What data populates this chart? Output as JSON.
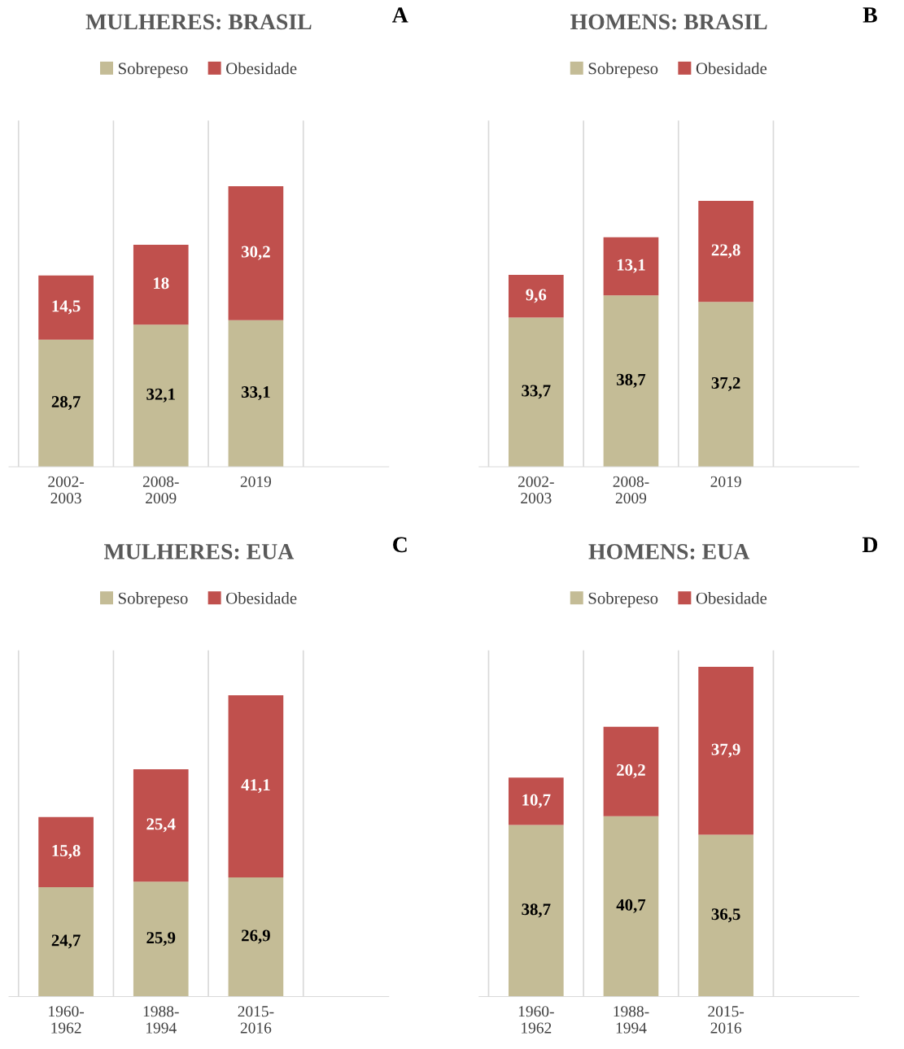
{
  "chart_data": [
    {
      "type": "bar",
      "title": "MULHERES: BRASIL",
      "stacked": true,
      "legend": "top",
      "tick_labels": "x",
      "annotations": [
        "A"
      ],
      "categories": [
        "2002-\n2003",
        "2008-\n2009",
        "2019"
      ],
      "series": [
        {
          "name": "Sobrepeso",
          "color": "#c4bc96",
          "values": [
            28.7,
            32.1,
            33.1
          ],
          "value_labels": [
            "28,7",
            "32,1",
            "33,1"
          ]
        },
        {
          "name": "Obesidade",
          "color": "#c0504d",
          "values": [
            14.5,
            18,
            30.2
          ],
          "value_labels": [
            "14,5",
            "18",
            "30,2"
          ]
        }
      ]
    },
    {
      "type": "bar",
      "title": "HOMENS: BRASIL",
      "stacked": true,
      "legend": "top",
      "tick_labels": "x",
      "annotations": [
        "B"
      ],
      "categories": [
        "2002-\n2003",
        "2008-\n2009",
        "2019"
      ],
      "series": [
        {
          "name": "Sobrepeso",
          "color": "#c4bc96",
          "values": [
            33.7,
            38.7,
            37.2
          ],
          "value_labels": [
            "33,7",
            "38,7",
            "37,2"
          ]
        },
        {
          "name": "Obesidade",
          "color": "#c0504d",
          "values": [
            9.6,
            13.1,
            22.8
          ],
          "value_labels": [
            "9,6",
            "13,1",
            "22,8"
          ]
        }
      ]
    },
    {
      "type": "bar",
      "title": "MULHERES: EUA",
      "stacked": true,
      "legend": "top",
      "tick_labels": "x",
      "annotations": [
        "C"
      ],
      "categories": [
        "1960-\n1962",
        "1988-\n1994",
        "2015-\n2016"
      ],
      "series": [
        {
          "name": "Sobrepeso",
          "color": "#c4bc96",
          "values": [
            24.7,
            25.9,
            26.9
          ],
          "value_labels": [
            "24,7",
            "25,9",
            "26,9"
          ]
        },
        {
          "name": "Obesidade",
          "color": "#c0504d",
          "values": [
            15.8,
            25.4,
            41.1
          ],
          "value_labels": [
            "15,8",
            "25,4",
            "41,1"
          ]
        }
      ]
    },
    {
      "type": "bar",
      "title": "HOMENS: EUA",
      "stacked": true,
      "legend": "top",
      "tick_labels": "x",
      "annotations": [
        "D"
      ],
      "categories": [
        "1960-\n1962",
        "1988-\n1994",
        "2015-\n2016"
      ],
      "series": [
        {
          "name": "Sobrepeso",
          "color": "#c4bc96",
          "values": [
            38.7,
            40.7,
            36.5
          ],
          "value_labels": [
            "38,7",
            "40,7",
            "36,5"
          ]
        },
        {
          "name": "Obesidade",
          "color": "#c0504d",
          "values": [
            10.7,
            20.2,
            37.9
          ],
          "value_labels": [
            "10,7",
            "20,2",
            "37,9"
          ]
        }
      ]
    }
  ]
}
